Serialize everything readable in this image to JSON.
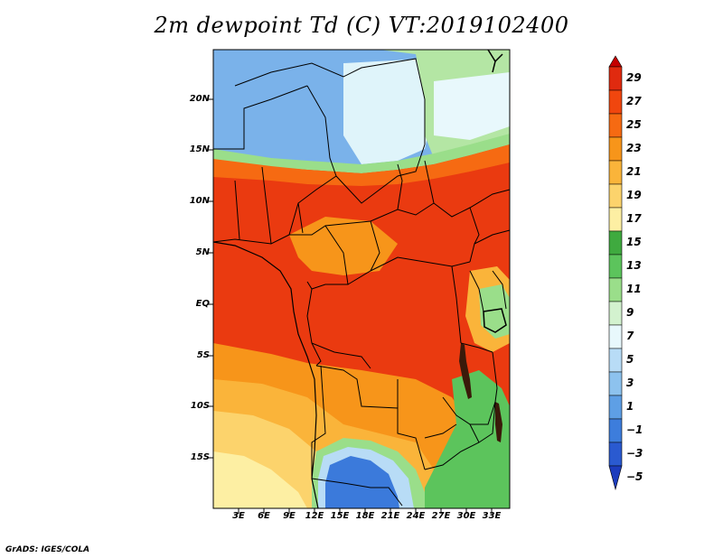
{
  "title": "2m dewpoint Td (C) VT:2019102400",
  "variable": "2m dewpoint Td",
  "units": "C",
  "valid_time": "2019102400",
  "footer": "GrADS: IGES/COLA",
  "lat_labels": [
    "20N",
    "15N",
    "10N",
    "5N",
    "EQ",
    "5S",
    "10S",
    "15S"
  ],
  "lon_labels": [
    "3E",
    "6E",
    "9E",
    "12E",
    "15E",
    "18E",
    "21E",
    "24E",
    "27E",
    "30E",
    "33E"
  ],
  "colorbar": {
    "levels": [
      "29",
      "27",
      "25",
      "23",
      "21",
      "19",
      "17",
      "15",
      "13",
      "11",
      "9",
      "7",
      "5",
      "3",
      "1",
      "−1",
      "−3",
      "−5"
    ],
    "colors": [
      "#c50000",
      "#e02a0f",
      "#f0460e",
      "#f66a12",
      "#f7951a",
      "#fab43a",
      "#fcd36c",
      "#fdefa3",
      "#3faa3f",
      "#5cc45c",
      "#9ade8a",
      "#d3f2cf",
      "#e8f8fc",
      "#b8dcf6",
      "#8dc2ee",
      "#5e9fe5",
      "#3d7ddc",
      "#2a5ad0",
      "#1c3cbd"
    ]
  },
  "map_colors": {
    "sahara_blue": "#7ab2ea",
    "sahara_pale": "#dff4fa",
    "sahara_green": "#b4e6a4",
    "moist_red": "#ea3a10",
    "moist_orange": "#f66a12",
    "south_yellow": "#fcd36c",
    "south_pale": "#fdefa3",
    "kalahari_blue": "#3b7adb",
    "east_green": "#5cc45c",
    "lake": "#000000",
    "border": "#000000"
  }
}
